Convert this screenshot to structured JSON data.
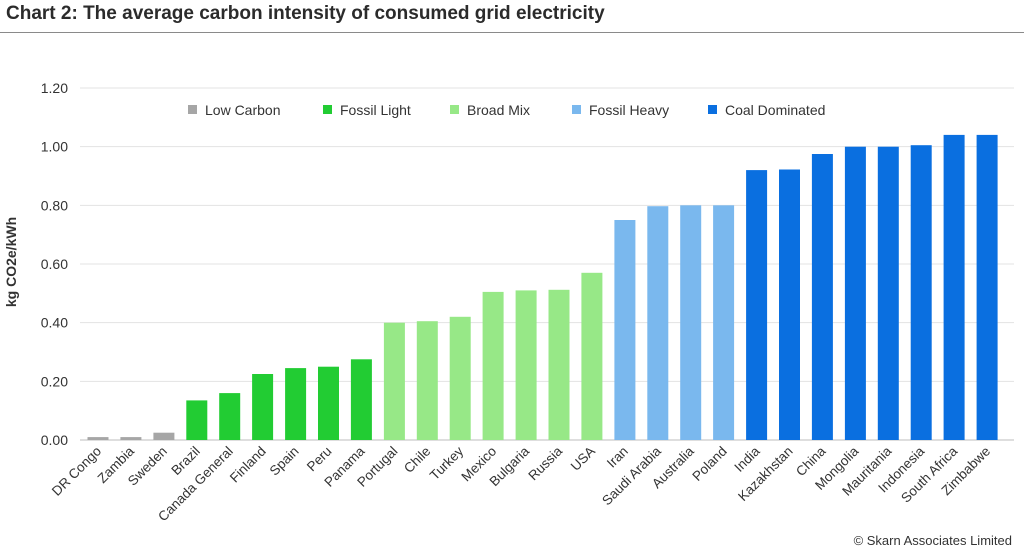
{
  "title": "Chart 2: The average carbon intensity of consumed grid electricity",
  "copyright": "© Skarn Associates Limited",
  "chart_data": {
    "type": "bar",
    "ylabel": "kg CO2e/kWh",
    "ylim": [
      0,
      1.2
    ],
    "yticks": [
      0.0,
      0.2,
      0.4,
      0.6,
      0.8,
      1.0,
      1.2
    ],
    "ytick_labels": [
      "0.00",
      "0.20",
      "0.40",
      "0.60",
      "0.80",
      "1.00",
      "1.20"
    ],
    "grid": true,
    "legend_position": "top",
    "legend": [
      {
        "name": "Low Carbon",
        "color": "#a6a6a6"
      },
      {
        "name": "Fossil Light",
        "color": "#22cc33"
      },
      {
        "name": "Broad Mix",
        "color": "#97e887"
      },
      {
        "name": "Fossil Heavy",
        "color": "#7ab8ee"
      },
      {
        "name": "Coal Dominated",
        "color": "#0a6fe0"
      }
    ],
    "bars": [
      {
        "category": "DR Congo",
        "value": 0.01,
        "group": "Low Carbon"
      },
      {
        "category": "Zambia",
        "value": 0.01,
        "group": "Low Carbon"
      },
      {
        "category": "Sweden",
        "value": 0.025,
        "group": "Low Carbon"
      },
      {
        "category": "Brazil",
        "value": 0.135,
        "group": "Fossil Light"
      },
      {
        "category": "Canada General",
        "value": 0.16,
        "group": "Fossil Light"
      },
      {
        "category": "Finland",
        "value": 0.225,
        "group": "Fossil Light"
      },
      {
        "category": "Spain",
        "value": 0.245,
        "group": "Fossil Light"
      },
      {
        "category": "Peru",
        "value": 0.25,
        "group": "Fossil Light"
      },
      {
        "category": "Panama",
        "value": 0.275,
        "group": "Fossil Light"
      },
      {
        "category": "Portugal",
        "value": 0.4,
        "group": "Broad Mix"
      },
      {
        "category": "Chile",
        "value": 0.405,
        "group": "Broad Mix"
      },
      {
        "category": "Turkey",
        "value": 0.42,
        "group": "Broad Mix"
      },
      {
        "category": "Mexico",
        "value": 0.505,
        "group": "Broad Mix"
      },
      {
        "category": "Bulgaria",
        "value": 0.51,
        "group": "Broad Mix"
      },
      {
        "category": "Russia",
        "value": 0.512,
        "group": "Broad Mix"
      },
      {
        "category": "USA",
        "value": 0.57,
        "group": "Broad Mix"
      },
      {
        "category": "Iran",
        "value": 0.75,
        "group": "Fossil Heavy"
      },
      {
        "category": "Saudi Arabia",
        "value": 0.797,
        "group": "Fossil Heavy"
      },
      {
        "category": "Australia",
        "value": 0.8,
        "group": "Fossil Heavy"
      },
      {
        "category": "Poland",
        "value": 0.8,
        "group": "Fossil Heavy"
      },
      {
        "category": "India",
        "value": 0.92,
        "group": "Coal Dominated"
      },
      {
        "category": "Kazakhstan",
        "value": 0.922,
        "group": "Coal Dominated"
      },
      {
        "category": "China",
        "value": 0.975,
        "group": "Coal Dominated"
      },
      {
        "category": "Mongolia",
        "value": 1.0,
        "group": "Coal Dominated"
      },
      {
        "category": "Mauritania",
        "value": 1.0,
        "group": "Coal Dominated"
      },
      {
        "category": "Indonesia",
        "value": 1.005,
        "group": "Coal Dominated"
      },
      {
        "category": "South Africa",
        "value": 1.04,
        "group": "Coal Dominated"
      },
      {
        "category": "Zimbabwe",
        "value": 1.04,
        "group": "Coal Dominated"
      }
    ]
  }
}
